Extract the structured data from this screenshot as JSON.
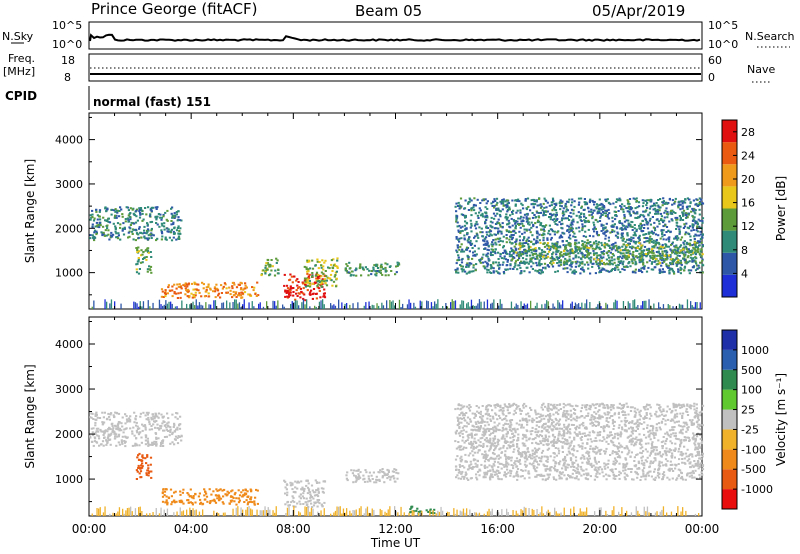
{
  "header": {
    "station": "Prince George (fitACF)",
    "beam": "Beam 05",
    "date": "05/Apr/2019"
  },
  "left_labels": {
    "nsky": "N.Sky",
    "freq_line1": "Freq.",
    "freq_line2": "[MHz]",
    "cpid": "CPID"
  },
  "right_labels": {
    "nsearch": "N.Search",
    "nave": "Nave"
  },
  "cpid_text": "normal (fast) 151",
  "noise_panel": {
    "left_ticks": [
      "10^5",
      "10^0"
    ],
    "right_ticks": [
      "10^5",
      "10^0"
    ]
  },
  "freq_panel": {
    "left_ticks": [
      "18",
      "8"
    ],
    "right_ticks": [
      "60",
      "0"
    ]
  },
  "colors": {
    "power_scale": [
      "#1f2fd8",
      "#2e57a8",
      "#2f8a77",
      "#5c9a3a",
      "#e8c61a",
      "#ef9a1a",
      "#ea5a10",
      "#e01010"
    ],
    "velocity_scale": [
      "#ea0d0d",
      "#e85a12",
      "#ef8a1a",
      "#f0b22a",
      "#c0c0c0",
      "#5fc92f",
      "#2f8a4f",
      "#2a5fb0",
      "#1f2fa8"
    ]
  },
  "chart_data": [
    {
      "type": "heatmap",
      "panel": "power",
      "xlabel": "",
      "ylabel": "Slant Range [km]",
      "xlim": [
        "00:00",
        "24:00"
      ],
      "ylim": [
        180,
        4600
      ],
      "y_ticks": [
        "1000",
        "2000",
        "3000",
        "4000"
      ],
      "colorbar": {
        "label": "Power [dB]",
        "range": [
          0,
          30
        ],
        "ticks": [
          "4",
          "8",
          "12",
          "16",
          "20",
          "24",
          "28"
        ]
      },
      "echo_regions": [
        {
          "t0": 0.0,
          "t1": 3.6,
          "r0": 1750,
          "r1": 2500,
          "value": 9
        },
        {
          "t0": 1.8,
          "t1": 2.4,
          "r0": 1000,
          "r1": 1600,
          "value": 12
        },
        {
          "t0": 2.8,
          "t1": 6.6,
          "r0": 450,
          "r1": 800,
          "value": 22
        },
        {
          "t0": 7.6,
          "t1": 9.2,
          "r0": 400,
          "r1": 1000,
          "value": 28
        },
        {
          "t0": 8.4,
          "t1": 9.7,
          "r0": 700,
          "r1": 1350,
          "value": 14
        },
        {
          "t0": 6.7,
          "t1": 7.4,
          "r0": 950,
          "r1": 1350,
          "value": 12
        },
        {
          "t0": 10.0,
          "t1": 12.1,
          "r0": 950,
          "r1": 1250,
          "value": 11
        },
        {
          "t0": 14.3,
          "t1": 24.0,
          "r0": 1000,
          "r1": 2700,
          "value": 8
        },
        {
          "t0": 16.5,
          "t1": 24.0,
          "r0": 1200,
          "r1": 1700,
          "value": 12
        }
      ]
    },
    {
      "type": "heatmap",
      "panel": "velocity",
      "xlabel": "Time UT",
      "ylabel": "Slant Range [km]",
      "xlim": [
        "00:00",
        "24:00"
      ],
      "x_ticks": [
        "00:00",
        "04:00",
        "08:00",
        "12:00",
        "16:00",
        "20:00",
        "00:00"
      ],
      "ylim": [
        180,
        4600
      ],
      "y_ticks": [
        "1000",
        "2000",
        "3000",
        "4000"
      ],
      "colorbar": {
        "label": "Velocity [m s⁻¹]",
        "ticks": [
          "-1000",
          "-500",
          "-100",
          "-25",
          "25",
          "100",
          "500",
          "1000"
        ]
      },
      "echo_regions": [
        {
          "t0": 0.0,
          "t1": 3.6,
          "r0": 1750,
          "r1": 2500,
          "value": 0
        },
        {
          "t0": 1.8,
          "t1": 2.4,
          "r0": 1000,
          "r1": 1600,
          "value": -600
        },
        {
          "t0": 2.8,
          "t1": 6.6,
          "r0": 450,
          "r1": 800,
          "value": -150
        },
        {
          "t0": 7.6,
          "t1": 9.2,
          "r0": 400,
          "r1": 1000,
          "value": 0
        },
        {
          "t0": 10.0,
          "t1": 12.1,
          "r0": 950,
          "r1": 1250,
          "value": 0
        },
        {
          "t0": 12.5,
          "t1": 13.5,
          "r0": 250,
          "r1": 420,
          "value": 150
        },
        {
          "t0": 14.3,
          "t1": 24.0,
          "r0": 1000,
          "r1": 2700,
          "value": 0
        }
      ]
    }
  ]
}
